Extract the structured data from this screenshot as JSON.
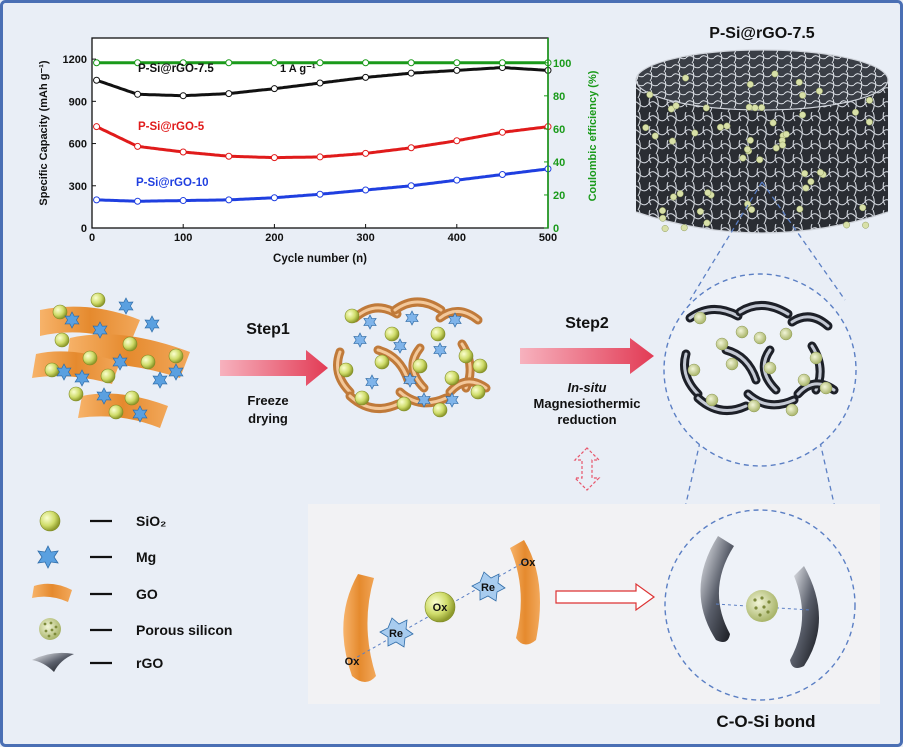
{
  "figure": {
    "chart": {
      "ylabel_left": "Specific Capacity (mAh g⁻¹)",
      "ylabel_right": "Coulombic efficiency (%)",
      "xlabel": "Cycle number (n)",
      "current_label": "1 A g⁻¹",
      "x_ticks": [
        "0",
        "100",
        "200",
        "300",
        "400",
        "500"
      ],
      "y_ticks_left": [
        "0",
        "300",
        "600",
        "900",
        "1200"
      ],
      "y_ticks_right": [
        "0",
        "20",
        "40",
        "60",
        "80",
        "100"
      ],
      "series_labels": [
        "P-Si@rGO-7.5",
        "P-Si@rGO-5",
        "P-Si@rGO-10"
      ]
    },
    "cylinder_title": "P-Si@rGO-7.5",
    "step1": {
      "title": "Step1",
      "line1": "Freeze",
      "line2": "drying"
    },
    "step2": {
      "title": "Step2",
      "line1": "In-situ",
      "line2": "Magnesiothermic",
      "line3": "reduction"
    },
    "legend": [
      {
        "label": "SiO₂",
        "icon": "sio2-sphere-icon"
      },
      {
        "label": "Mg",
        "icon": "mg-star-icon"
      },
      {
        "label": "GO",
        "icon": "go-sheet-icon"
      },
      {
        "label": "Porous silicon",
        "icon": "porous-silicon-icon"
      },
      {
        "label": "rGO",
        "icon": "rgo-sheet-icon"
      }
    ],
    "mechanism": {
      "ox": "Ox",
      "re": "Re"
    },
    "bond_label": "C-O-Si bond"
  },
  "chart_data": {
    "type": "scatter",
    "xlabel": "Cycle number (n)",
    "ylabel": "Specific Capacity (mAh g⁻¹)",
    "y2label": "Coulombic efficiency (%)",
    "xlim": [
      0,
      500
    ],
    "ylim": [
      0,
      1350
    ],
    "y2lim": [
      0,
      115
    ],
    "x": [
      5,
      50,
      100,
      150,
      200,
      250,
      300,
      350,
      400,
      450,
      500
    ],
    "series": [
      {
        "name": "P-Si@rGO-7.5",
        "color": "#111111",
        "values": [
          1050,
          950,
          940,
          955,
          990,
          1030,
          1070,
          1100,
          1120,
          1140,
          1120
        ]
      },
      {
        "name": "P-Si@rGO-5",
        "color": "#e01b1b",
        "values": [
          720,
          580,
          540,
          510,
          500,
          505,
          530,
          570,
          620,
          680,
          720
        ]
      },
      {
        "name": "P-Si@rGO-10",
        "color": "#1f3fe0",
        "values": [
          200,
          190,
          195,
          200,
          215,
          240,
          270,
          300,
          340,
          380,
          420
        ]
      },
      {
        "name": "Coulombic efficiency",
        "axis": "right",
        "color": "#1a9a1a",
        "values": [
          100,
          100,
          100,
          100,
          100,
          100,
          100,
          100,
          100,
          100,
          100
        ]
      }
    ],
    "grid": false
  },
  "colors": {
    "background": "#e9eef6",
    "frame": "#4a6fb4",
    "go": "#e58a2e",
    "sio2": "#d2de72",
    "mg": "#5aa0e0",
    "arrow": "#e8556b",
    "cap7_5": "#111111",
    "cap5": "#e01b1b",
    "cap10": "#1f3fe0",
    "ce": "#1a9a1a"
  }
}
